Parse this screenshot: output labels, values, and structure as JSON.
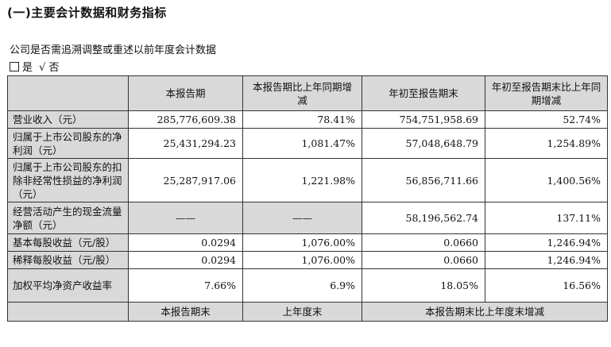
{
  "heading": "(一)主要会计数据和财务指标",
  "question": "公司是否需追溯调整或重述以前年度会计数据",
  "answer": {
    "yes": "是",
    "check": "√",
    "no": "否"
  },
  "table": {
    "headers": [
      "",
      "本报告期",
      "本报告期比上年同期增减",
      "年初至报告期末",
      "年初至报告期末比上年同期增减"
    ],
    "rows": [
      {
        "label": "营业收入（元）",
        "c1": "285,776,609.38",
        "c2": "78.41%",
        "c3": "754,751,958.69",
        "c4": "52.74%"
      },
      {
        "label": "归属于上市公司股东的净利润（元）",
        "c1": "25,431,294.23",
        "c2": "1,081.47%",
        "c3": "57,048,648.79",
        "c4": "1,254.89%"
      },
      {
        "label": "归属于上市公司股东的扣除非经常性损益的净利润（元）",
        "c1": "25,287,917.06",
        "c2": "1,221.98%",
        "c3": "56,856,711.66",
        "c4": "1,400.56%"
      },
      {
        "label": "经营活动产生的现金流量净额（元）",
        "c1": "——",
        "c2": "——",
        "c3": "58,196,562.74",
        "c4": "137.11%"
      },
      {
        "label": "基本每股收益（元/股）",
        "c1": "0.0294",
        "c2": "1,076.00%",
        "c3": "0.0660",
        "c4": "1,246.94%"
      },
      {
        "label": "稀释每股收益（元/股）",
        "c1": "0.0294",
        "c2": "1,076.00%",
        "c3": "0.0660",
        "c4": "1,246.94%"
      },
      {
        "label": "加权平均净资产收益率",
        "c1": "7.66%",
        "c2": "6.9%",
        "c3": "18.05%",
        "c4": "16.56%"
      }
    ],
    "footer": [
      "",
      "本报告期末",
      "上年度末",
      "本报告期末比上年度末增减"
    ]
  }
}
